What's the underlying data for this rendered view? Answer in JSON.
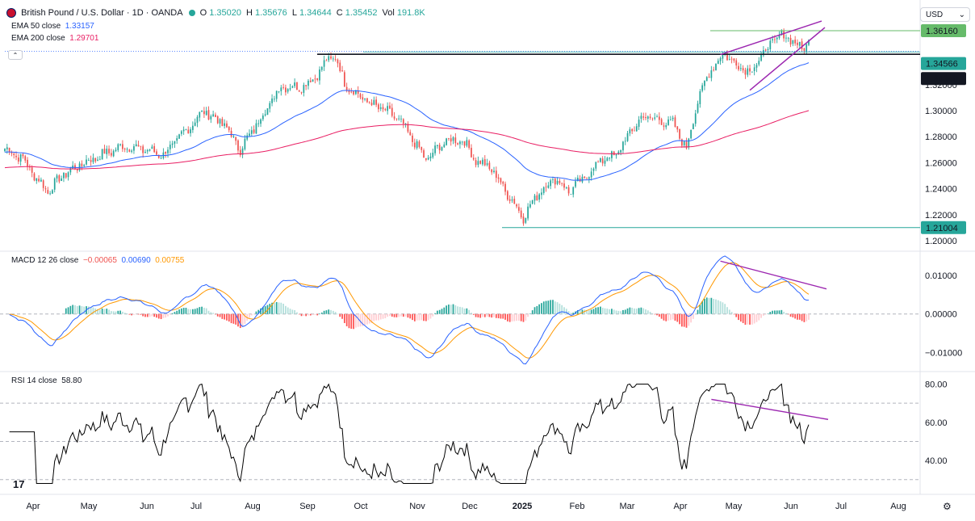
{
  "header": {
    "symbol": "British Pound / U.S. Dollar · 1D · OANDA",
    "open_label": "O",
    "open": "1.35020",
    "high_label": "H",
    "high": "1.35676",
    "low_label": "L",
    "low": "1.34644",
    "close_label": "C",
    "close": "1.35452",
    "vol_label": "Vol",
    "vol": "191.8K",
    "ema50_label": "EMA 50 close",
    "ema50_value": "1.33157",
    "ema200_label": "EMA 200 close",
    "ema200_value": "1.29701",
    "currency": "USD"
  },
  "macd_header": {
    "label": "MACD 12 26 close",
    "hist": "−0.00065",
    "macd": "0.00690",
    "signal": "0.00755"
  },
  "rsi_header": {
    "label": "RSI 14 close",
    "value": "58.80"
  },
  "price_badges": {
    "top": "1.36160",
    "current": "1.34566",
    "support": "1.34340",
    "low": "1.21004"
  },
  "colors": {
    "up": "#26a69a",
    "down": "#ef5350",
    "ema50": "#2962ff",
    "ema200": "#e91e63",
    "macd": "#2962ff",
    "signal": "#ff9800",
    "trendline": "#9c27b0",
    "rsi": "#000000"
  },
  "chart_data": [
    {
      "type": "candlestick",
      "title": "British Pound / U.S. Dollar · 1D · OANDA",
      "x_tick_labels": [
        "Apr",
        "May",
        "Jun",
        "Jul",
        "Aug",
        "Sep",
        "Oct",
        "Nov",
        "Dec",
        "2025",
        "Feb",
        "Mar",
        "Apr",
        "May",
        "Jun",
        "Jul",
        "Aug"
      ],
      "y_tick_labels": [
        "1.20000",
        "1.22000",
        "1.24000",
        "1.26000",
        "1.28000",
        "1.30000",
        "1.32000"
      ],
      "ylim": [
        1.195,
        1.374
      ],
      "grid": false,
      "close_path": [
        [
          0,
          1.271
        ],
        [
          8,
          1.263
        ],
        [
          14,
          1.248
        ],
        [
          19,
          1.238
        ],
        [
          26,
          1.251
        ],
        [
          34,
          1.259
        ],
        [
          44,
          1.267
        ],
        [
          53,
          1.273
        ],
        [
          62,
          1.27
        ],
        [
          70,
          1.266
        ],
        [
          78,
          1.281
        ],
        [
          88,
          1.3
        ],
        [
          97,
          1.289
        ],
        [
          104,
          1.27
        ],
        [
          112,
          1.292
        ],
        [
          122,
          1.319
        ],
        [
          130,
          1.318
        ],
        [
          136,
          1.324
        ],
        [
          142,
          1.338
        ],
        [
          146,
          1.342
        ],
        [
          150,
          1.321
        ],
        [
          156,
          1.312
        ],
        [
          162,
          1.305
        ],
        [
          168,
          1.3
        ],
        [
          174,
          1.293
        ],
        [
          180,
          1.278
        ],
        [
          186,
          1.262
        ],
        [
          194,
          1.276
        ],
        [
          202,
          1.278
        ],
        [
          208,
          1.262
        ],
        [
          215,
          1.255
        ],
        [
          222,
          1.236
        ],
        [
          229,
          1.218
        ],
        [
          236,
          1.238
        ],
        [
          243,
          1.248
        ],
        [
          249,
          1.238
        ],
        [
          256,
          1.248
        ],
        [
          263,
          1.262
        ],
        [
          270,
          1.266
        ],
        [
          276,
          1.283
        ],
        [
          282,
          1.296
        ],
        [
          288,
          1.293
        ],
        [
          295,
          1.29
        ],
        [
          301,
          1.271
        ],
        [
          306,
          1.308
        ],
        [
          312,
          1.333
        ],
        [
          318,
          1.344
        ],
        [
          324,
          1.334
        ],
        [
          330,
          1.331
        ],
        [
          336,
          1.347
        ],
        [
          342,
          1.358
        ],
        [
          348,
          1.355
        ],
        [
          352,
          1.346
        ],
        [
          355,
          1.3545
        ]
      ],
      "series": [
        {
          "name": "EMA 50 close",
          "last": 1.33157
        },
        {
          "name": "EMA 200 close",
          "last": 1.29701
        }
      ],
      "horizontal_levels": [
        1.3616,
        1.34566,
        1.3434,
        1.21004
      ],
      "annotations": [
        "rising wedge (purple)",
        "resistance line at 1.34340",
        "support line at 1.21004"
      ]
    },
    {
      "type": "line",
      "title": "MACD 12 26 close",
      "y_tick_labels": [
        "0.01000",
        "0.00000",
        "−0.01000"
      ],
      "ylim": [
        -0.0145,
        0.0148
      ],
      "series": [
        {
          "name": "MACD",
          "last": 0.0069
        },
        {
          "name": "Signal",
          "last": 0.00755
        },
        {
          "name": "Histogram",
          "last": -0.00065
        }
      ]
    },
    {
      "type": "line",
      "title": "RSI 14 close",
      "y_tick_labels": [
        "80.00",
        "60.00",
        "40.00"
      ],
      "ylim": [
        24,
        84
      ],
      "levels": [
        70,
        50,
        30
      ],
      "series": [
        {
          "name": "RSI 14",
          "last": 58.8
        }
      ]
    }
  ]
}
